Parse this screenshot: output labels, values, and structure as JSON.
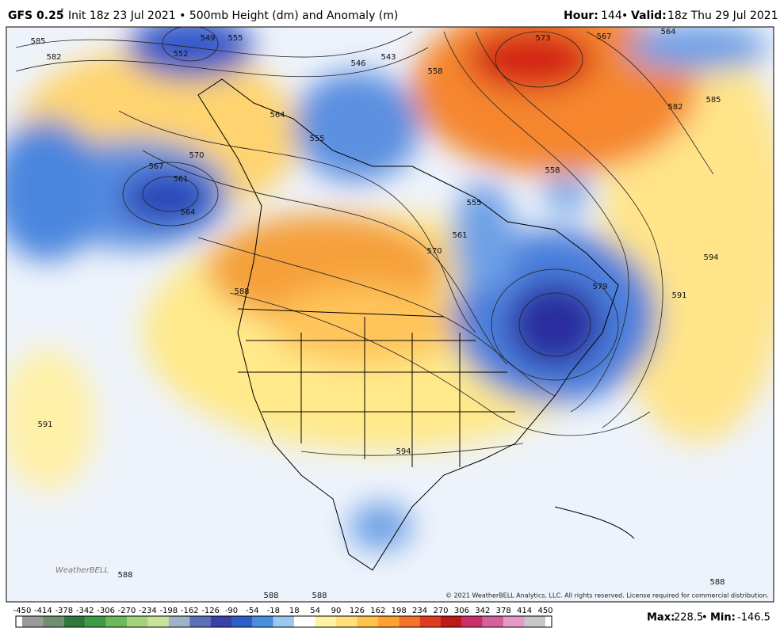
{
  "header": {
    "model": "GFS 0.25",
    "degree": "°",
    "title": "Init 18z 23 Jul 2021 • 500mb Height (dm) and Anomaly (m)",
    "hour_label": "Hour:",
    "hour": "144",
    "separator": "•",
    "valid_label": "Valid:",
    "valid": "18z Thu 29 Jul 2021"
  },
  "map": {
    "contour_labels": [
      585,
      582,
      549,
      552,
      555,
      546,
      543,
      573,
      567,
      564,
      582,
      585,
      570,
      567,
      561,
      564,
      564,
      555,
      558,
      558,
      555,
      561,
      570,
      588,
      579,
      591,
      594,
      591,
      594,
      588,
      588,
      588,
      588
    ],
    "logo": "WeatherBELL",
    "copyright": "© 2021 WeatherBELL Analytics, LLC. All rights reserved. License required for commercial distribution."
  },
  "colorbar": {
    "labels": [
      -450,
      -414,
      -378,
      -342,
      -306,
      -270,
      -234,
      -198,
      -162,
      -126,
      -90,
      -54,
      -18,
      18,
      54,
      90,
      126,
      162,
      198,
      234,
      270,
      306,
      342,
      378,
      414,
      450
    ],
    "colors": [
      "#9a9a9a",
      "#6f8f6f",
      "#2f7a3a",
      "#3e9a45",
      "#6cb85a",
      "#a4d37c",
      "#c7e39a",
      "#9fb3c8",
      "#5a6fb8",
      "#3b3fa8",
      "#2e5fc8",
      "#4a8ee0",
      "#9cc8f0",
      "#ffffff",
      "#fff2a0",
      "#ffe07a",
      "#ffc24a",
      "#ffa030",
      "#f5732a",
      "#e03a20",
      "#c01818",
      "#c8306a",
      "#d65fa0",
      "#e59ac6",
      "#c8c8c8"
    ]
  },
  "footer": {
    "max_label": "Max:",
    "max": "228.5",
    "separator": "•",
    "min_label": "Min:",
    "min": "-146.5"
  }
}
